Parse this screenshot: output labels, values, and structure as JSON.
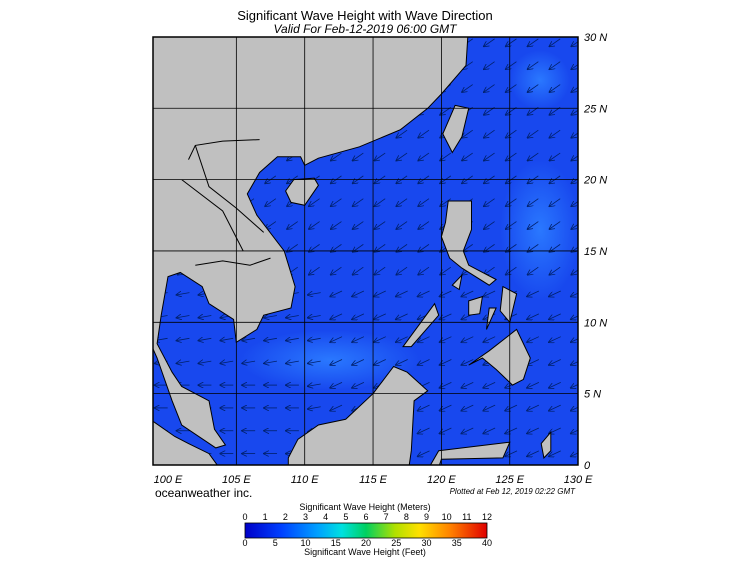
{
  "title": "Significant Wave Height with Wave Direction",
  "subtitle": "Valid For Feb-12-2019 06:00 GMT",
  "lon_labels": [
    "100 E",
    "105 E",
    "110 E",
    "115 E",
    "120 E",
    "125 E",
    "130 E"
  ],
  "lat_labels": [
    "30 N",
    "25 N",
    "20 N",
    "15 N",
    "10 N",
    "5 N",
    "0"
  ],
  "credit": "oceanweather inc.",
  "plotted": "Plotted at Feb 12, 2019 02:22 GMT",
  "colorbar": {
    "meters_title": "Significant Wave Height (Meters)",
    "meters_ticks": [
      "0",
      "1",
      "2",
      "3",
      "4",
      "5",
      "6",
      "7",
      "8",
      "9",
      "10",
      "11",
      "12"
    ],
    "feet_ticks": [
      "0",
      "5",
      "10",
      "15",
      "20",
      "25",
      "30",
      "35",
      "40"
    ],
    "feet_title": "Significant Wave Height (Feet)"
  }
}
